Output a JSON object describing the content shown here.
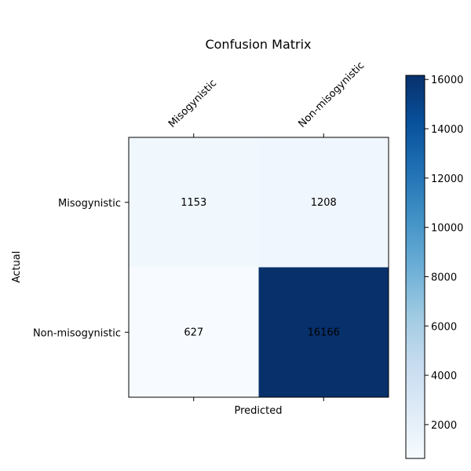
{
  "chart_data": {
    "type": "heatmap",
    "title": "Confusion Matrix",
    "xlabel": "Predicted",
    "ylabel": "Actual",
    "x_categories": [
      "Misogynistic",
      "Non-misogynistic"
    ],
    "y_categories": [
      "Misogynistic",
      "Non-misogynistic"
    ],
    "values": [
      [
        1153,
        1208
      ],
      [
        627,
        16166
      ]
    ],
    "colormap": "Blues",
    "colorbar": {
      "min": 627,
      "max": 16166,
      "ticks": [
        2000,
        4000,
        6000,
        8000,
        10000,
        12000,
        14000,
        16000
      ],
      "tick_labels": [
        "2000",
        "4000",
        "6000",
        "8000",
        "10000",
        "12000",
        "14000",
        "16000"
      ]
    },
    "x_tick_position": "top",
    "grid": false
  }
}
